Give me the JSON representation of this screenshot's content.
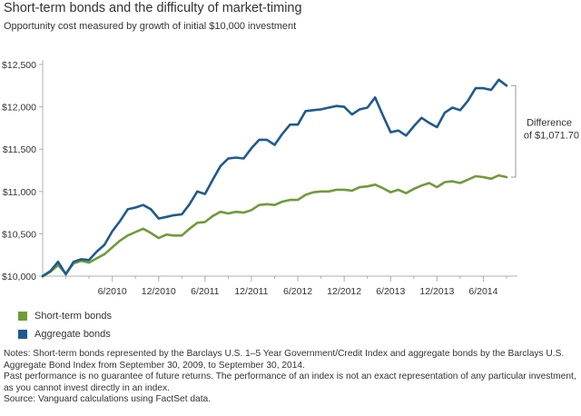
{
  "header": {
    "title": "Short-term bonds and the difficulty of market-timing",
    "subtitle": "Opportunity cost measured by growth of initial $10,000 investment"
  },
  "chart_data": {
    "type": "line",
    "title": "Short-term bonds and the difficulty of market-timing",
    "subtitle": "Opportunity cost measured by growth of initial $10,000 investment",
    "x_tick_labels": [
      "6/2010",
      "12/2010",
      "6/2011",
      "12/2011",
      "6/2012",
      "12/2012",
      "6/2013",
      "12/2013",
      "6/2014"
    ],
    "x_tick_index_offset": 9,
    "x_tick_step": 6,
    "y_tick_labels": [
      "$10,000",
      "$10,500",
      "$11,000",
      "$11,500",
      "$12,000",
      "$12,500"
    ],
    "y_ticks": [
      10000,
      10500,
      11000,
      11500,
      12000,
      12500
    ],
    "ylim": [
      10000,
      12500
    ],
    "x_range_months": "9/2009 - 9/2014",
    "grid": false,
    "legend_position": "bottom-left",
    "series": [
      {
        "name": "Short-term bonds",
        "color": "#6f9b3b",
        "values": [
          10000,
          10050,
          10130,
          10030,
          10150,
          10180,
          10160,
          10210,
          10260,
          10340,
          10420,
          10480,
          10520,
          10560,
          10510,
          10450,
          10490,
          10480,
          10480,
          10560,
          10630,
          10640,
          10710,
          10760,
          10740,
          10760,
          10750,
          10780,
          10840,
          10850,
          10840,
          10880,
          10900,
          10900,
          10960,
          10990,
          11000,
          11000,
          11020,
          11020,
          11010,
          11050,
          11060,
          11080,
          11040,
          10990,
          11020,
          10980,
          11030,
          11070,
          11100,
          11050,
          11110,
          11120,
          11100,
          11140,
          11180,
          11170,
          11150,
          11190,
          11170
        ]
      },
      {
        "name": "Aggregate bonds",
        "color": "#1f5a8e",
        "values": [
          10000,
          10060,
          10170,
          10020,
          10170,
          10200,
          10190,
          10290,
          10370,
          10530,
          10650,
          10790,
          10810,
          10840,
          10790,
          10680,
          10700,
          10720,
          10730,
          10850,
          11000,
          10970,
          11140,
          11300,
          11390,
          11400,
          11390,
          11510,
          11610,
          11610,
          11550,
          11680,
          11790,
          11790,
          11950,
          11960,
          11970,
          11990,
          12010,
          12000,
          11910,
          11970,
          11990,
          12110,
          11900,
          11700,
          11720,
          11660,
          11770,
          11870,
          11810,
          11760,
          11930,
          11990,
          11960,
          12070,
          12220,
          12220,
          12200,
          12320,
          12250
        ]
      }
    ],
    "annotation": {
      "label_line1": "Difference",
      "label_line2": "of $1,071.70",
      "from_value": 11170,
      "to_value": 12250
    }
  },
  "notes": {
    "line1": "Notes: Short-term bonds represented by the Barclays U.S. 1–5 Year Government/Credit Index and aggregate bonds by the Barclays U.S. Aggregate Bond Index from September 30, 2009, to September 30, 2014.",
    "line2": "Past performance is no guarantee of future returns. The performance of an index is not an exact representation of any particular investment, as you cannot invest directly in an index.",
    "line3": "Source: Vanguard calculations using FactSet data."
  }
}
